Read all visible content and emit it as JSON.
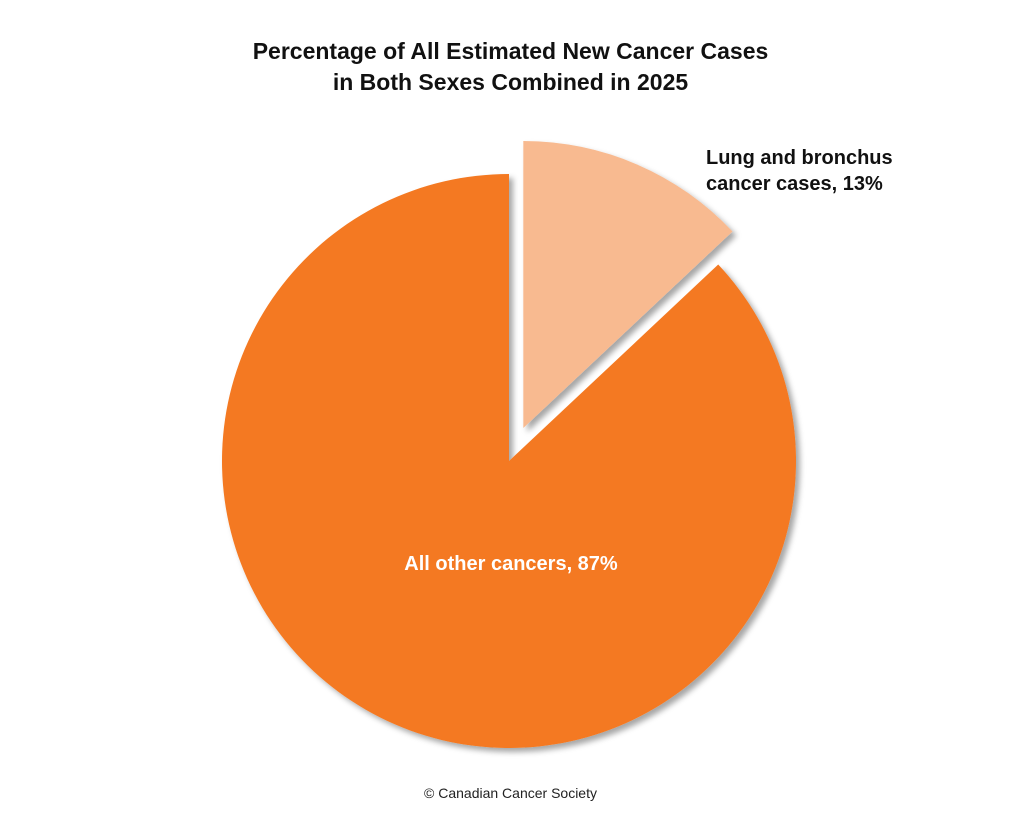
{
  "title_line1": "Percentage of All Estimated New Cancer Cases",
  "title_line2": "in Both Sexes Combined in 2025",
  "footer": "© Canadian Cancer Society",
  "labels": {
    "lung_line1": "Lung and bronchus",
    "lung_line2": "cancer cases, 13%",
    "other": "All other cancers, 87%"
  },
  "colors": {
    "other": "#F47920",
    "lung": "#F8BA90"
  },
  "chart_data": {
    "type": "pie",
    "title": "Percentage of All Estimated New Cancer Cases in Both Sexes Combined in 2025",
    "categories": [
      "Lung and bronchus cancer cases",
      "All other cancers"
    ],
    "values": [
      13,
      87
    ],
    "unit": "%",
    "exploded": [
      "Lung and bronchus cancer cases"
    ],
    "start_angle": "12 o'clock, clockwise",
    "source": "© Canadian Cancer Society"
  }
}
